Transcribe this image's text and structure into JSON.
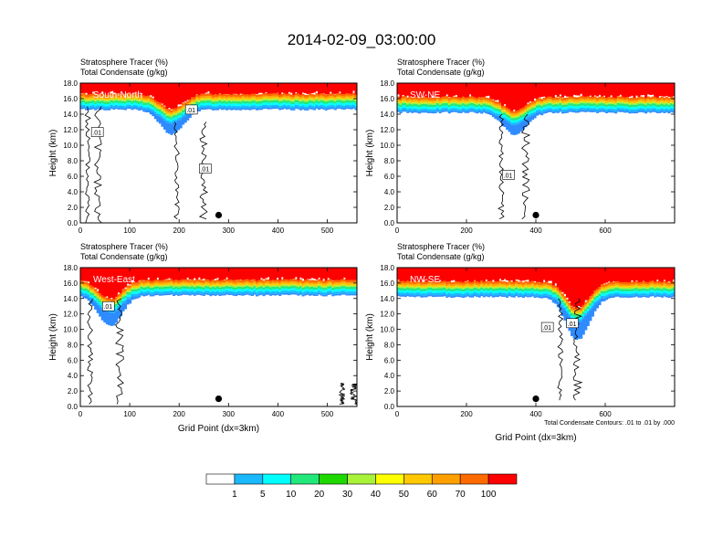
{
  "title": "2014-02-09_03:00:00",
  "colors": {
    "tracer_levels": [
      "#ffffff",
      "#2f8bff",
      "#19b8ff",
      "#00ffff",
      "#22e87b",
      "#1ed800",
      "#a8f23a",
      "#ffff00",
      "#ffc800",
      "#ffa000",
      "#ff6a00",
      "#ff0000"
    ],
    "contour": "#000000",
    "marker": "#000000"
  },
  "chart_data": [
    {
      "type": "heatmap",
      "name": "South-North",
      "field_label": "Stratosphere Tracer   (%)",
      "contour_label": "Total Condensate   (g/kg)",
      "xlabel": "",
      "ylabel": "Height (km)",
      "xlim": [
        0,
        560
      ],
      "ylim": [
        0,
        18
      ],
      "xticks": [
        0,
        100,
        200,
        300,
        400,
        500
      ],
      "yticks": [
        "0.0",
        "2.0",
        "4.0",
        "6.0",
        "8.0",
        "10.0",
        "12.0",
        "14.0",
        "16.0",
        "18.0"
      ],
      "contour_value_labels": [
        ".01",
        ".01",
        ".01"
      ],
      "marker_x": 280,
      "tropopause_km": 15.8,
      "fold_center_x": 185,
      "fold_depth_km": 2.0
    },
    {
      "type": "heatmap",
      "name": "SW-NE",
      "field_label": "Stratosphere Tracer   (%)",
      "contour_label": "Total Condensate   (g/kg)",
      "xlabel": "",
      "ylabel": "Height (km)",
      "xlim": [
        0,
        800
      ],
      "ylim": [
        0,
        18
      ],
      "xticks": [
        0,
        200,
        400,
        600
      ],
      "yticks": [
        "0.0",
        "2.0",
        "4.0",
        "6.0",
        "8.0",
        "10.0",
        "12.0",
        "14.0",
        "16.0",
        "18.0"
      ],
      "contour_value_labels": [
        ".01"
      ],
      "marker_x": 400,
      "tropopause_km": 15.4,
      "fold_center_x": 340,
      "fold_depth_km": 1.8
    },
    {
      "type": "heatmap",
      "name": "West-East",
      "field_label": "Stratosphere Tracer   (%)",
      "contour_label": "Total Condensate   (g/kg)",
      "xlabel": "Grid Point (dx=3km)",
      "ylabel": "Height (km)",
      "xlim": [
        0,
        560
      ],
      "ylim": [
        0,
        18
      ],
      "xticks": [
        0,
        100,
        200,
        300,
        400,
        500
      ],
      "yticks": [
        "0.0",
        "2.0",
        "4.0",
        "6.0",
        "8.0",
        "10.0",
        "12.0",
        "14.0",
        "16.0",
        "18.0"
      ],
      "contour_value_labels": [
        ".01"
      ],
      "marker_x": 280,
      "tropopause_km": 15.6,
      "fold_center_x": 60,
      "fold_depth_km": 2.5
    },
    {
      "type": "heatmap",
      "name": "NW-SE",
      "field_label": "Stratosphere Tracer   (%)",
      "contour_label": "Total Condensate   (g/kg)",
      "xlabel": "Grid Point (dx=3km)",
      "ylabel": "Height (km)",
      "xlim": [
        0,
        800
      ],
      "ylim": [
        0,
        18
      ],
      "xticks": [
        0,
        200,
        400,
        600
      ],
      "yticks": [
        "0.0",
        "2.0",
        "4.0",
        "6.0",
        "8.0",
        "10.0",
        "12.0",
        "14.0",
        "16.0",
        "18.0"
      ],
      "contour_value_labels": [
        ".01",
        ".01"
      ],
      "marker_x": 400,
      "tropopause_km": 15.4,
      "fold_center_x": 520,
      "fold_depth_km": 3.5,
      "footnote": "Total Condensate Contours: .01 to .01 by .000"
    }
  ],
  "colorbar": {
    "labels": [
      "1",
      "5",
      "10",
      "20",
      "30",
      "40",
      "50",
      "60",
      "70",
      "100"
    ]
  }
}
